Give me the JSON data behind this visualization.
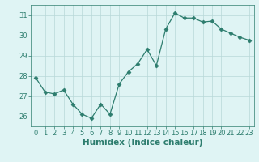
{
  "x": [
    0,
    1,
    2,
    3,
    4,
    5,
    6,
    7,
    8,
    9,
    10,
    11,
    12,
    13,
    14,
    15,
    16,
    17,
    18,
    19,
    20,
    21,
    22,
    23
  ],
  "y": [
    27.9,
    27.2,
    27.1,
    27.3,
    26.6,
    26.1,
    25.9,
    26.6,
    26.1,
    27.6,
    28.2,
    28.6,
    29.3,
    28.5,
    30.3,
    31.1,
    30.85,
    30.85,
    30.65,
    30.7,
    30.3,
    30.1,
    29.9,
    29.75
  ],
  "line_color": "#2d7d6e",
  "marker": "D",
  "marker_size": 2.5,
  "bg_color": "#dff4f4",
  "grid_color": "#b8d8d8",
  "xlabel": "Humidex (Indice chaleur)",
  "ylim": [
    25.5,
    31.5
  ],
  "xlim": [
    -0.5,
    23.5
  ],
  "yticks": [
    26,
    27,
    28,
    29,
    30,
    31
  ],
  "xticks": [
    0,
    1,
    2,
    3,
    4,
    5,
    6,
    7,
    8,
    9,
    10,
    11,
    12,
    13,
    14,
    15,
    16,
    17,
    18,
    19,
    20,
    21,
    22,
    23
  ],
  "tick_label_fontsize": 6.0,
  "xlabel_fontsize": 7.5
}
